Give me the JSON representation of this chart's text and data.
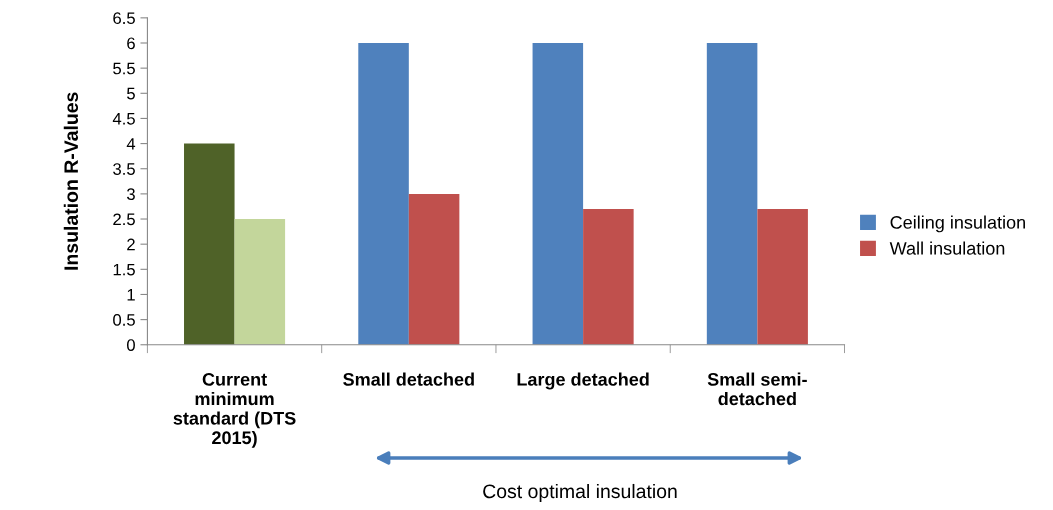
{
  "chart_data": {
    "type": "bar",
    "ylabel": "Insulation R-Values",
    "categories": [
      "Current\nminimum\nstandard (DTS\n2015)",
      "Small detached",
      "Large detached",
      "Small semi-\ndetached"
    ],
    "series": [
      {
        "name": "Ceiling insulation",
        "color": "#4f81bd",
        "colors": [
          "#4f6228",
          "#4f81bd",
          "#4f81bd",
          "#4f81bd"
        ],
        "values": [
          4,
          6,
          6,
          6
        ]
      },
      {
        "name": "Wall insulation",
        "color": "#c0504d",
        "colors": [
          "#c3d69b",
          "#c0504d",
          "#c0504d",
          "#c0504d"
        ],
        "values": [
          2.5,
          3,
          2.7,
          2.7
        ]
      }
    ],
    "ylim": [
      0,
      6.5
    ],
    "yticks": [
      0,
      0.5,
      1,
      1.5,
      2,
      2.5,
      3,
      3.5,
      4,
      4.5,
      5,
      5.5,
      6,
      6.5
    ],
    "grid": false,
    "legend": "right",
    "annotations": [
      "Cost optimal insulation"
    ]
  }
}
